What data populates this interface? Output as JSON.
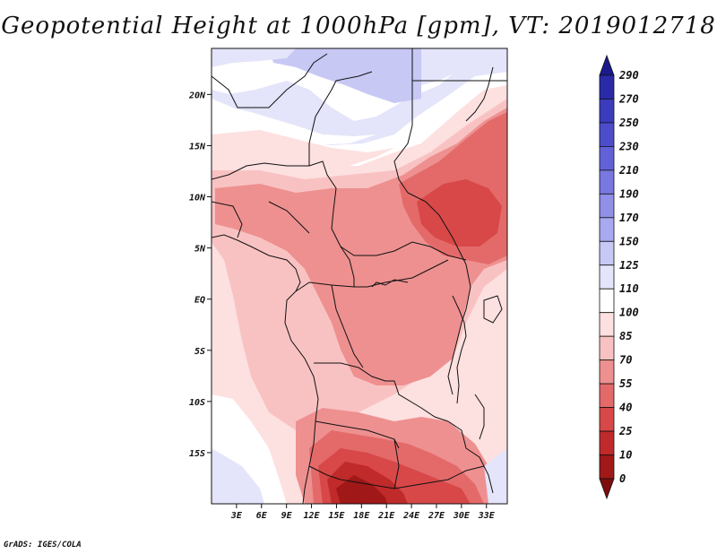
{
  "title": "Geopotential Height at 1000hPa [gpm], VT: 2019012718",
  "credit": "GrADS: IGES/COLA",
  "map": {
    "lat_range": [
      -20,
      24.5
    ],
    "lon_range": [
      0,
      35.5
    ],
    "lat_labels": [
      "20N",
      "15N",
      "10N",
      "5N",
      "EQ",
      "5S",
      "10S",
      "15S"
    ],
    "lat_values": [
      20,
      15,
      10,
      5,
      0,
      -5,
      -10,
      -15
    ],
    "lon_labels": [
      "3E",
      "6E",
      "9E",
      "12E",
      "15E",
      "18E",
      "21E",
      "24E",
      "27E",
      "30E",
      "33E"
    ],
    "lon_values": [
      3,
      6,
      9,
      12,
      15,
      18,
      21,
      24,
      27,
      30,
      33
    ]
  },
  "colorbar": {
    "labels": [
      "290",
      "270",
      "250",
      "230",
      "210",
      "190",
      "170",
      "150",
      "125",
      "110",
      "100",
      "85",
      "70",
      "55",
      "40",
      "25",
      "10",
      "0"
    ],
    "colors_top_to_bottom": [
      "#1a1a8c",
      "#2a2aa8",
      "#3b3bbd",
      "#4d4dcc",
      "#6262d8",
      "#7878e0",
      "#9090e8",
      "#a9a9ef",
      "#c8c8f5",
      "#e4e4fa",
      "#ffffff",
      "#fde0e0",
      "#f9c2c2",
      "#ee9090",
      "#e46a6a",
      "#d84848",
      "#c02a2a",
      "#a01818",
      "#7c0e0e"
    ]
  }
}
